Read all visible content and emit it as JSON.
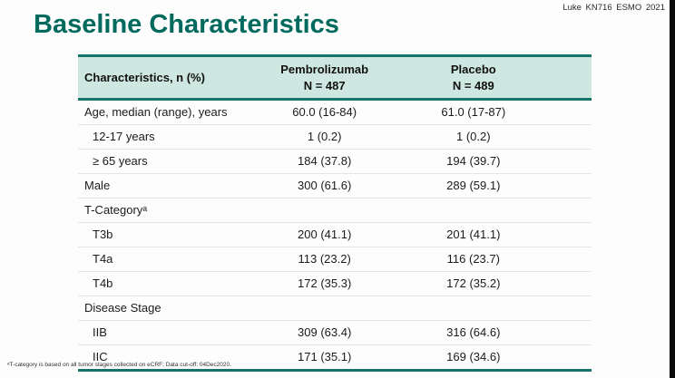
{
  "attribution": "Luke KN716 ESMO 2021",
  "title": "Baseline Characteristics",
  "table": {
    "headers": {
      "characteristics": "Characteristics, n (%)",
      "col1_name": "Pembrolizumab",
      "col1_n": "N = 487",
      "col2_name": "Placebo",
      "col2_n": "N = 489"
    },
    "rows": [
      {
        "label": "Age, median (range), years",
        "pembrolizumab": "60.0 (16-84)",
        "placebo": "61.0 (17-87)",
        "indent": false
      },
      {
        "label": "12-17 years",
        "pembrolizumab": "1 (0.2)",
        "placebo": "1 (0.2)",
        "indent": true
      },
      {
        "label": "≥ 65 years",
        "pembrolizumab": "184 (37.8)",
        "placebo": "194 (39.7)",
        "indent": true
      },
      {
        "label": "Male",
        "pembrolizumab": "300 (61.6)",
        "placebo": "289 (59.1)",
        "indent": false
      },
      {
        "label": "T-Categoryᵃ",
        "pembrolizumab": "",
        "placebo": "",
        "indent": false
      },
      {
        "label": "T3b",
        "pembrolizumab": "200 (41.1)",
        "placebo": "201 (41.1)",
        "indent": true
      },
      {
        "label": "T4a",
        "pembrolizumab": "113 (23.2)",
        "placebo": "116 (23.7)",
        "indent": true
      },
      {
        "label": "T4b",
        "pembrolizumab": "172 (35.3)",
        "placebo": "172 (35.2)",
        "indent": true
      },
      {
        "label": "Disease Stage",
        "pembrolizumab": "",
        "placebo": "",
        "indent": false
      },
      {
        "label": "IIB",
        "pembrolizumab": "309 (63.4)",
        "placebo": "316 (64.6)",
        "indent": true
      },
      {
        "label": "IIC",
        "pembrolizumab": "171 (35.1)",
        "placebo": "169 (34.6)",
        "indent": true
      }
    ]
  },
  "footnote": "ᵃT-category is based on all tumor stages collected on eCRF; Data cut-off: 04Dec2020.",
  "colors": {
    "accent_teal": "#006a5e",
    "border_teal": "#16756b",
    "header_bg": "#cee7e0"
  }
}
